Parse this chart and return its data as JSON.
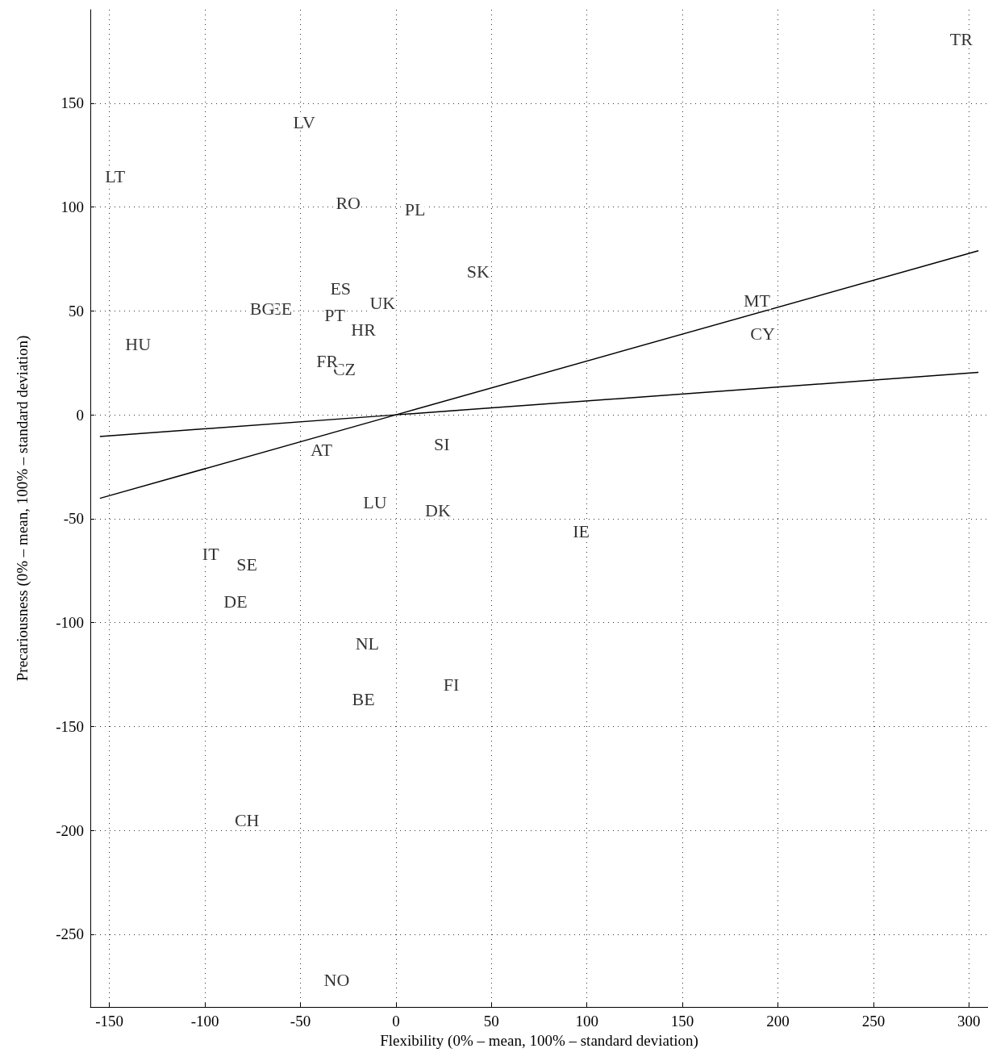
{
  "chart_data": {
    "type": "line",
    "xlabel": "Flexibility (0% – mean, 100% – standard deviation)",
    "ylabel": "Precariousness (0% – mean, 100% – standard deviation)",
    "xlim": [
      -160,
      310
    ],
    "ylim": [
      -285,
      195
    ],
    "xticks": [
      -150,
      -100,
      -50,
      0,
      50,
      100,
      150,
      200,
      250,
      300
    ],
    "yticks": [
      -250,
      -200,
      -150,
      -100,
      -50,
      0,
      50,
      100,
      150
    ],
    "grid": true,
    "line_style": "solid",
    "series": [
      {
        "color": "#000000",
        "x": [
          -155,
          0,
          305
        ],
        "values": [
          -40.2,
          0,
          79
        ]
      },
      {
        "color": "#000000",
        "x": [
          -155,
          0,
          305
        ],
        "values": [
          -10.4,
          0,
          20.4
        ]
      }
    ],
    "annotations": [
      {
        "text": "TR",
        "x": 296,
        "y": 181
      },
      {
        "text": "LV",
        "x": -48,
        "y": 141
      },
      {
        "text": "LT",
        "x": -147,
        "y": 115
      },
      {
        "text": "RO",
        "x": -25,
        "y": 102
      },
      {
        "text": "PL",
        "x": 10,
        "y": 99
      },
      {
        "text": "SK",
        "x": 43,
        "y": 69
      },
      {
        "text": "ES",
        "x": -29,
        "y": 61
      },
      {
        "text": "UK",
        "x": -7,
        "y": 54
      },
      {
        "text": "EE",
        "x": -60,
        "y": 51
      },
      {
        "text": "BG",
        "x": -70,
        "y": 51
      },
      {
        "text": "PT",
        "x": -32,
        "y": 48
      },
      {
        "text": "HR",
        "x": -17,
        "y": 41
      },
      {
        "text": "MT",
        "x": 189,
        "y": 55
      },
      {
        "text": "CY",
        "x": 192,
        "y": 39
      },
      {
        "text": "HU",
        "x": -135,
        "y": 34
      },
      {
        "text": "CZ",
        "x": -27,
        "y": 22
      },
      {
        "text": "FR",
        "x": -36,
        "y": 26
      },
      {
        "text": "AT",
        "x": -39,
        "y": -17
      },
      {
        "text": "SI",
        "x": 24,
        "y": -14
      },
      {
        "text": "LU",
        "x": -11,
        "y": -42
      },
      {
        "text": "DK",
        "x": 22,
        "y": -46
      },
      {
        "text": "IE",
        "x": 97,
        "y": -56
      },
      {
        "text": "IT",
        "x": -97,
        "y": -67
      },
      {
        "text": "SE",
        "x": -78,
        "y": -72
      },
      {
        "text": "DE",
        "x": -84,
        "y": -90
      },
      {
        "text": "NL",
        "x": -15,
        "y": -110
      },
      {
        "text": "FI",
        "x": 29,
        "y": -130
      },
      {
        "text": "BE",
        "x": -17,
        "y": -137
      },
      {
        "text": "CH",
        "x": -78,
        "y": -195
      },
      {
        "text": "NO",
        "x": -31,
        "y": -272
      }
    ]
  }
}
